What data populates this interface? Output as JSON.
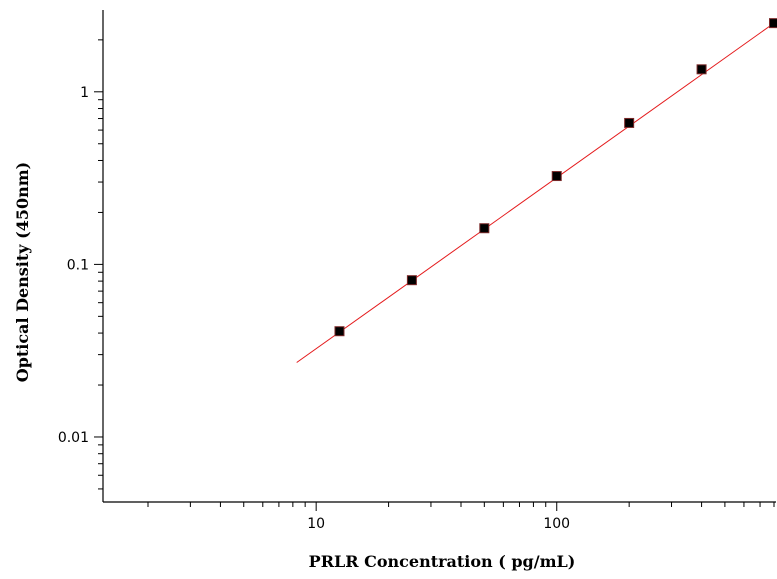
{
  "chart_data": {
    "type": "scatter",
    "title": "",
    "xlabel": "PRLR Concentration ( pg/mL)",
    "ylabel": "Optical Density (450nm)",
    "x_scale": "log",
    "y_scale": "log",
    "xlim": [
      1.3,
      800
    ],
    "ylim": [
      0.0042,
      2.9
    ],
    "x_ticks": [
      {
        "value": 10,
        "label": "10"
      },
      {
        "value": 100,
        "label": "100"
      }
    ],
    "y_ticks": [
      {
        "value": 0.01,
        "label": "0.01"
      },
      {
        "value": 0.1,
        "label": "0.1"
      },
      {
        "value": 1,
        "label": "1"
      }
    ],
    "grid": false,
    "legend": null,
    "series": [
      {
        "kind": "points",
        "x": [
          12.5,
          25,
          50,
          100,
          200,
          400,
          800
        ],
        "y": [
          0.041,
          0.081,
          0.162,
          0.325,
          0.66,
          1.35,
          2.5
        ],
        "color": "#000000"
      },
      {
        "kind": "fit_line",
        "x": [
          8.3,
          800
        ],
        "y": [
          0.027,
          2.5
        ],
        "color": "#e41a1c"
      }
    ]
  }
}
